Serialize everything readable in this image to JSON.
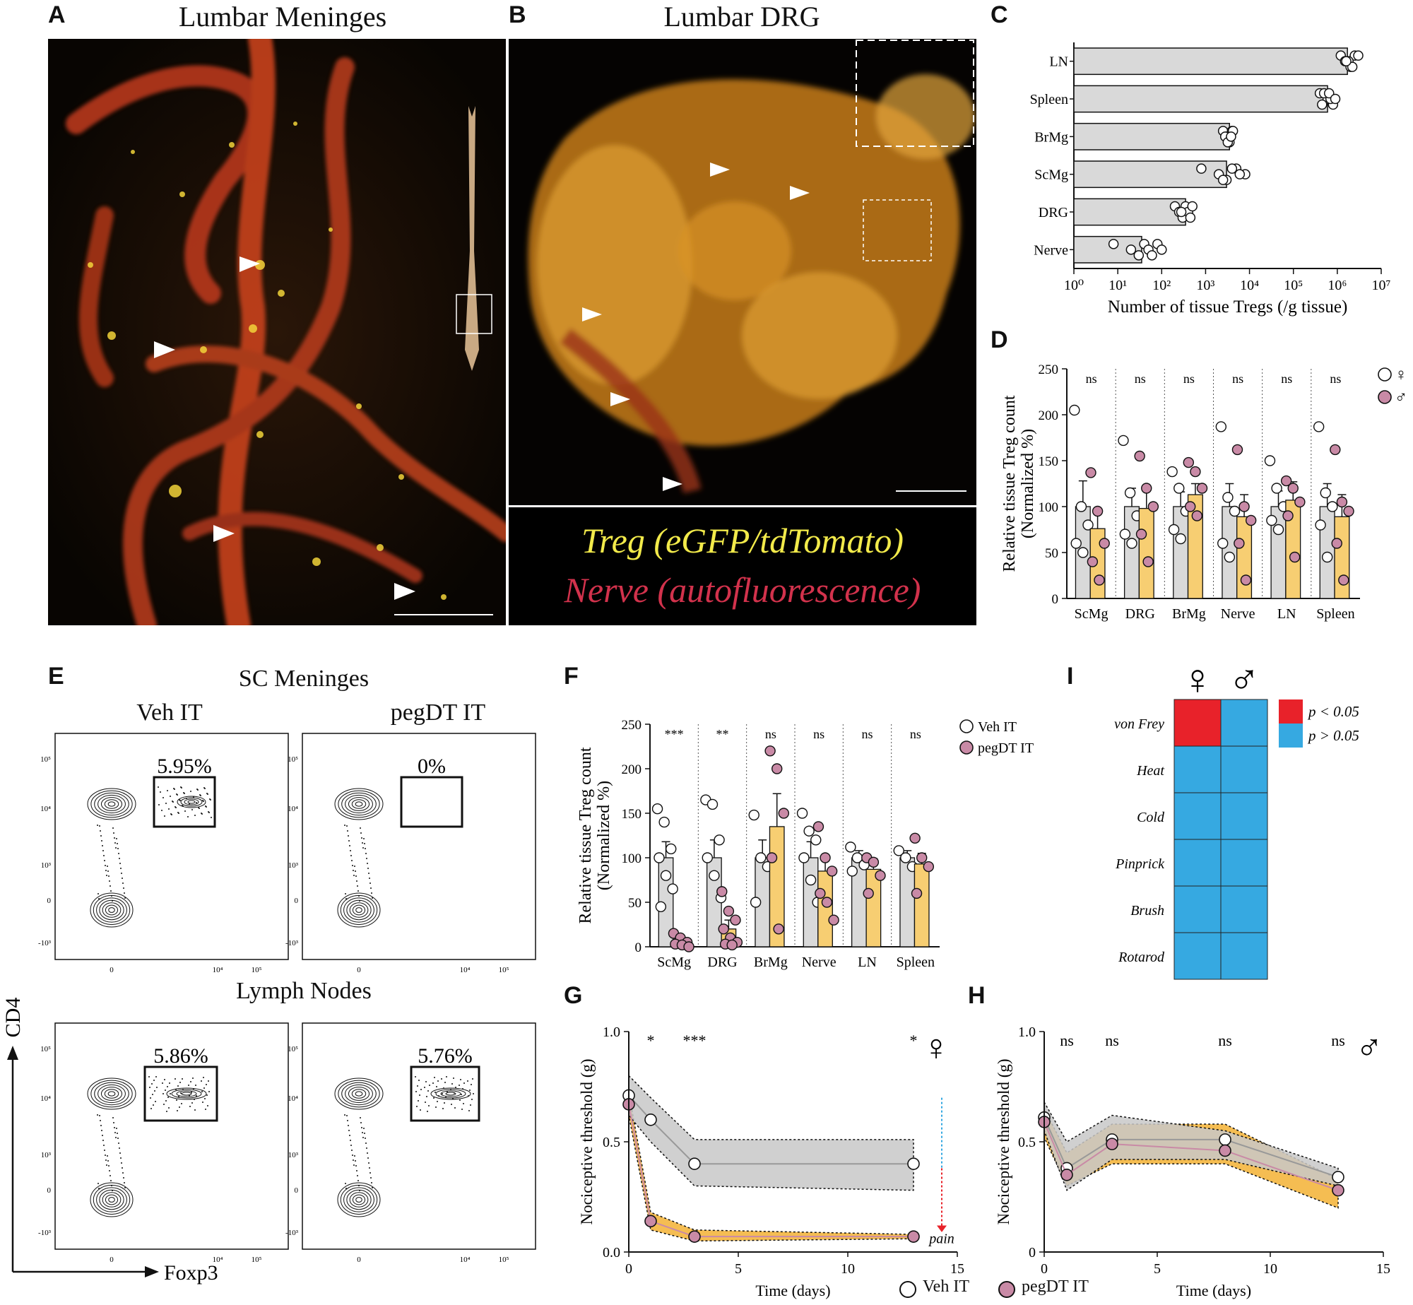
{
  "panels": {
    "A": {
      "label": "A",
      "title": "Lumbar Meninges"
    },
    "B": {
      "label": "B",
      "title": "Lumbar DRG",
      "legend": {
        "treg": "Treg (eGFP/tdTomato)",
        "nerve": "Nerve (autofluorescence)"
      }
    },
    "C": {
      "label": "C"
    },
    "D": {
      "label": "D"
    },
    "E": {
      "label": "E",
      "sc_title": "SC Meninges",
      "veh_title": "Veh IT",
      "peg_title": "pegDT IT",
      "ln_title": "Lymph Nodes",
      "gates": [
        "5.95%",
        "0%",
        "5.86%",
        "5.76%"
      ],
      "y_axis": "CD4",
      "x_axis": "Foxp3",
      "y_ticks": [
        "10⁵",
        "10⁴",
        "10³",
        "0",
        "-10³"
      ],
      "x_ticks": [
        "0",
        "10⁴",
        "10⁵"
      ]
    },
    "F": {
      "label": "F"
    },
    "G": {
      "label": "G"
    },
    "H": {
      "label": "H"
    },
    "I": {
      "label": "I"
    }
  },
  "colors": {
    "veh_bar": "#d9d9d9",
    "peg_bar": "#f7ce72",
    "male_dot": "#c98aa6",
    "sig": "#e8222a",
    "nonsig": "#36a9e1",
    "band_veh": "#c8c8c8",
    "band_peg": "#f4b63f"
  },
  "chart_data": [
    {
      "id": "C",
      "type": "bar",
      "orientation": "horizontal",
      "categories": [
        "LN",
        "Spleen",
        "BrMg",
        "ScMg",
        "DRG",
        "Nerve"
      ],
      "values": [
        1700000,
        600000,
        3500,
        3000,
        350,
        35
      ],
      "points": [
        [
          1200000,
          1500000,
          2000000,
          2500000,
          1800000,
          2200000,
          3000000,
          1600000
        ],
        [
          400000,
          600000,
          800000,
          500000,
          700000,
          450000,
          650000,
          900000
        ],
        [
          2500,
          3000,
          3500,
          4000,
          2800,
          3200,
          4200,
          3800
        ],
        [
          800,
          2000,
          3000,
          5000,
          8000,
          2500,
          4000,
          6000
        ],
        [
          200,
          250,
          300,
          350,
          400,
          450,
          500,
          280
        ],
        [
          8,
          20,
          30,
          40,
          50,
          60,
          80,
          100
        ]
      ],
      "xlabel": "Number of tissue Tregs (/g tissue)",
      "xscale": "log",
      "xlim": [
        1,
        10000000
      ],
      "x_ticks": [
        "10⁰",
        "10¹",
        "10²",
        "10³",
        "10⁴",
        "10⁵",
        "10⁶",
        "10⁷"
      ]
    },
    {
      "id": "D",
      "type": "bar",
      "categories": [
        "ScMg",
        "DRG",
        "BrMg",
        "Nerve",
        "LN",
        "Spleen"
      ],
      "sig": [
        "ns",
        "ns",
        "ns",
        "ns",
        "ns",
        "ns"
      ],
      "series": [
        {
          "name": "♀",
          "values": [
            100,
            100,
            100,
            100,
            100,
            100
          ],
          "sem": [
            28,
            20,
            16,
            25,
            17,
            25
          ],
          "points": [
            [
              205,
              100,
              80,
              60,
              50
            ],
            [
              172,
              115,
              90,
              70,
              60
            ],
            [
              138,
              120,
              95,
              75,
              65
            ],
            [
              187,
              110,
              95,
              60,
              45
            ],
            [
              150,
              120,
              100,
              85,
              75
            ],
            [
              187,
              115,
              100,
              80,
              45
            ]
          ]
        },
        {
          "name": "♂",
          "values": [
            76,
            98,
            113,
            89,
            107,
            89
          ],
          "sem": [
            20,
            20,
            12,
            24,
            20,
            24
          ],
          "points": [
            [
              137,
              95,
              60,
              40,
              20
            ],
            [
              155,
              120,
              100,
              70,
              40
            ],
            [
              148,
              138,
              120,
              100,
              90
            ],
            [
              162,
              100,
              85,
              60,
              20
            ],
            [
              128,
              120,
              105,
              90,
              45
            ],
            [
              162,
              105,
              95,
              60,
              20
            ]
          ]
        }
      ],
      "ylabel": "Relative tissue Treg count (Normalized %)",
      "ylim": [
        0,
        250
      ],
      "y_ticks": [
        "0",
        "50",
        "100",
        "150",
        "200",
        "250"
      ]
    },
    {
      "id": "F",
      "type": "bar",
      "categories": [
        "ScMg",
        "DRG",
        "BrMg",
        "Nerve",
        "LN",
        "Spleen"
      ],
      "sig": [
        "***",
        "**",
        "ns",
        "ns",
        "ns",
        "ns"
      ],
      "series": [
        {
          "name": "Veh IT",
          "values": [
            100,
            100,
            100,
            100,
            100,
            100
          ],
          "sem": [
            18,
            20,
            20,
            18,
            8,
            8
          ],
          "points": [
            [
              155,
              140,
              110,
              100,
              80,
              65,
              45
            ],
            [
              165,
              160,
              120,
              100,
              80,
              55
            ],
            [
              148,
              100,
              90,
              50
            ],
            [
              150,
              130,
              120,
              100,
              75,
              50
            ],
            [
              112,
              100,
              92,
              85
            ],
            [
              108,
              100,
              90
            ]
          ]
        },
        {
          "name": "pegDT IT",
          "values": [
            5,
            20,
            135,
            85,
            87,
            93
          ],
          "sem": [
            3,
            10,
            37,
            14,
            12,
            12
          ],
          "points": [
            [
              15,
              10,
              5,
              3,
              2,
              0
            ],
            [
              62,
              40,
              30,
              20,
              10,
              5,
              3,
              2
            ],
            [
              220,
              200,
              150,
              100,
              20
            ],
            [
              135,
              100,
              85,
              60,
              50,
              30
            ],
            [
              100,
              95,
              80,
              60
            ],
            [
              122,
              100,
              90,
              60
            ]
          ]
        }
      ],
      "ylabel": "Relative tissue Treg count (Normalized %)",
      "ylim": [
        0,
        250
      ],
      "y_ticks": [
        "0",
        "50",
        "100",
        "150",
        "200",
        "250"
      ]
    },
    {
      "id": "G",
      "type": "line",
      "series": [
        {
          "name": "Veh IT",
          "x": [
            0,
            1,
            3,
            13
          ],
          "y": [
            0.71,
            0.6,
            0.4,
            0.4
          ],
          "upper": [
            0.8,
            0.7,
            0.51,
            0.51
          ],
          "lower": [
            0.62,
            0.5,
            0.3,
            0.28
          ]
        },
        {
          "name": "pegDT IT",
          "x": [
            0,
            1,
            3,
            13
          ],
          "y": [
            0.67,
            0.14,
            0.07,
            0.07
          ],
          "upper": [
            0.72,
            0.18,
            0.1,
            0.08
          ],
          "lower": [
            0.62,
            0.1,
            0.05,
            0.06
          ]
        }
      ],
      "sig_labels": [
        {
          "x": 1,
          "text": "*"
        },
        {
          "x": 3,
          "text": "***"
        },
        {
          "x": 13,
          "text": "*"
        }
      ],
      "sex": "♀",
      "pain_label": "pain",
      "xlabel": "Time  (days)",
      "ylabel": "Nociceptive threshold (g)",
      "xlim": [
        0,
        15
      ],
      "ylim": [
        0,
        1.0
      ],
      "x_ticks": [
        "0",
        "5",
        "10",
        "15"
      ],
      "y_ticks": [
        "0.0",
        "0.5",
        "1.0"
      ]
    },
    {
      "id": "H",
      "type": "line",
      "series": [
        {
          "name": "Veh IT",
          "x": [
            0,
            1,
            3,
            8,
            13
          ],
          "y": [
            0.61,
            0.38,
            0.51,
            0.51,
            0.34
          ],
          "upper": [
            0.68,
            0.5,
            0.62,
            0.55,
            0.38
          ],
          "lower": [
            0.55,
            0.28,
            0.42,
            0.42,
            0.3
          ]
        },
        {
          "name": "pegDT IT",
          "x": [
            0,
            1,
            3,
            8,
            13
          ],
          "y": [
            0.59,
            0.35,
            0.49,
            0.46,
            0.28
          ],
          "upper": [
            0.65,
            0.45,
            0.58,
            0.58,
            0.33
          ],
          "lower": [
            0.52,
            0.3,
            0.4,
            0.4,
            0.2
          ]
        }
      ],
      "sig_labels": [
        {
          "x": 1,
          "text": "ns"
        },
        {
          "x": 3,
          "text": "ns"
        },
        {
          "x": 8,
          "text": "ns"
        },
        {
          "x": 13,
          "text": "ns"
        }
      ],
      "sex": "♂",
      "xlabel": "Time  (days)",
      "ylabel": "Nociceptive threshold (g)",
      "xlim": [
        0,
        15
      ],
      "ylim": [
        0,
        1.0
      ],
      "x_ticks": [
        "0",
        "5",
        "10",
        "15"
      ],
      "y_ticks": [
        "0",
        "0.5",
        "1.0"
      ]
    },
    {
      "id": "I",
      "type": "heatmap",
      "rows": [
        "von Frey",
        "Heat",
        "Cold",
        "Pinprick",
        "Brush",
        "Rotarod"
      ],
      "cols": [
        "♀",
        "♂"
      ],
      "values": [
        [
          1,
          0
        ],
        [
          0,
          0
        ],
        [
          0,
          0
        ],
        [
          0,
          0
        ],
        [
          0,
          0
        ],
        [
          0,
          0
        ]
      ],
      "legend": [
        "p < 0.05",
        "p > 0.05"
      ]
    }
  ],
  "legend_bottom": {
    "veh": "Veh IT",
    "peg": "pegDT IT"
  }
}
